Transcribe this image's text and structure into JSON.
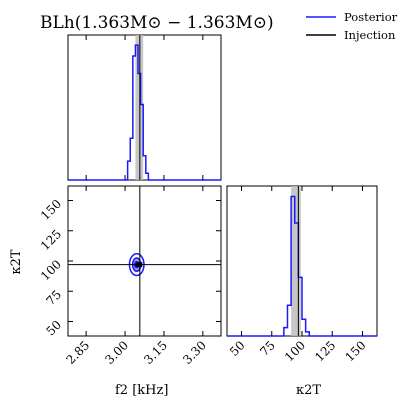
{
  "title": "BLh(1.363M⊙ − 1.363M⊙)",
  "legend": {
    "placement": "top-right",
    "entries": [
      {
        "name": "Posterior",
        "color": "#1a1aff"
      },
      {
        "name": "Injection",
        "color": "#000000"
      }
    ]
  },
  "colors": {
    "posterior": "#1a1aff",
    "injection": "#000000",
    "band": "#bdbdbd"
  },
  "chart_data": [
    {
      "type": "histogram",
      "panel": "f2-marginal",
      "xlim": [
        2.78,
        3.37
      ],
      "bins": [
        3.01,
        3.02,
        3.03,
        3.04,
        3.05,
        3.06,
        3.07,
        3.08,
        3.09,
        3.1
      ],
      "values": [
        0.14,
        0.31,
        0.92,
        1.0,
        0.79,
        0.56,
        0.18,
        0.05,
        0.0
      ],
      "injection": 3.057,
      "band": [
        3.04,
        3.07
      ]
    },
    {
      "type": "scatter",
      "panel": "f2-kappa-joint",
      "xlabel": "f2 [kHz]",
      "ylabel": "κ2T",
      "xlim": [
        2.78,
        3.37
      ],
      "ylim": [
        38,
        162
      ],
      "xticks": [
        "2.85",
        "3.00",
        "3.15",
        "3.30"
      ],
      "xtick_values": [
        2.85,
        3.0,
        3.15,
        3.3
      ],
      "yticks": [
        "50",
        "75",
        "100",
        "125",
        "150"
      ],
      "ytick_values": [
        50,
        75,
        100,
        125,
        150
      ],
      "injection": {
        "x": 3.057,
        "y": 97
      },
      "center": {
        "x": 3.045,
        "y": 97
      },
      "contours_sigma_x": [
        0.008,
        0.016,
        0.028
      ],
      "contours_sigma_y": [
        2.5,
        5.5,
        9.0
      ]
    },
    {
      "type": "histogram",
      "panel": "kappa-marginal",
      "xlabel": "κ2T",
      "xlim": [
        38,
        162
      ],
      "xticks": [
        "50",
        "75",
        "100",
        "125",
        "150"
      ],
      "xtick_values": [
        50,
        75,
        100,
        125,
        150
      ],
      "bins": [
        85,
        88,
        91,
        94,
        97,
        100,
        103,
        106
      ],
      "values": [
        0.06,
        0.22,
        1.0,
        0.81,
        0.42,
        0.12,
        0.03
      ],
      "injection": 97,
      "band": [
        91,
        99
      ]
    }
  ]
}
